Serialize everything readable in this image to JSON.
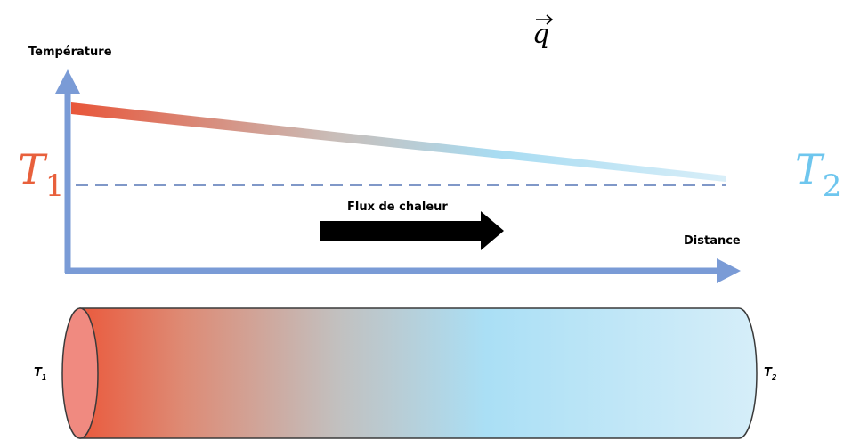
{
  "vector": {
    "symbol": "q"
  },
  "axes": {
    "y_label": "Température",
    "x_label": "Distance"
  },
  "big_labels": {
    "t1": {
      "symbol": "T",
      "subscript": "1"
    },
    "t2": {
      "symbol": "T",
      "subscript": "2"
    }
  },
  "flow": {
    "label": "Flux de chaleur"
  },
  "cylinder": {
    "left": {
      "symbol": "T",
      "subscript": "1"
    },
    "right": {
      "symbol": "T",
      "subscript": "2"
    }
  }
}
